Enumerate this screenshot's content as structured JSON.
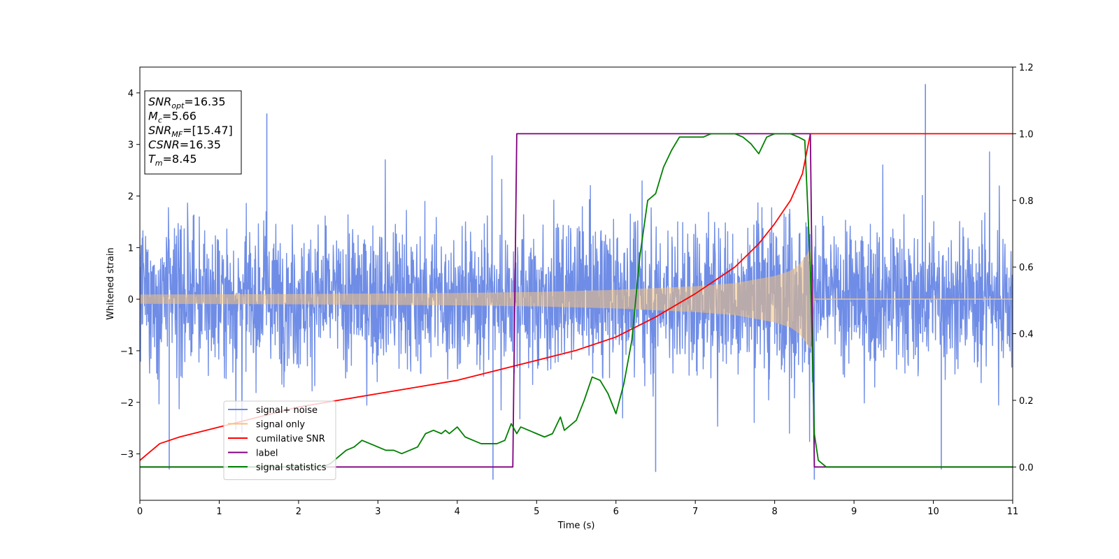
{
  "chart_data": {
    "type": "line",
    "xlabel": "Time (s)",
    "ylabel": "Whitened strain",
    "xlim": [
      0,
      11
    ],
    "ylim": [
      -3.9,
      4.5
    ],
    "y2lim": [
      -0.1,
      1.2
    ],
    "xticks": [
      "0",
      "1",
      "2",
      "3",
      "4",
      "5",
      "6",
      "7",
      "8",
      "9",
      "10",
      "11"
    ],
    "yticks": [
      "−3",
      "−2",
      "−1",
      "0",
      "1",
      "2",
      "3",
      "4"
    ],
    "y2ticks": [
      "0.0",
      "0.2",
      "0.4",
      "0.6",
      "0.8",
      "1.0",
      "1.2"
    ],
    "grid": false,
    "legend_position": "lower-left",
    "annotation": [
      {
        "id": "snr_opt",
        "sym": "SNR",
        "sub": "opt",
        "value": "=16.35"
      },
      {
        "id": "mc",
        "sym": "M",
        "sub": "c",
        "value": "=5.66"
      },
      {
        "id": "snr_mf",
        "sym": "SNR",
        "sub": "MF",
        "value": "=[15.47]"
      },
      {
        "id": "csnr",
        "sym": "CSNR",
        "sub": "",
        "value": "=16.35"
      },
      {
        "id": "tm",
        "sym": "T",
        "sub": "m",
        "value": "=8.45"
      }
    ],
    "merger_time": 8.45,
    "series": [
      {
        "name": "signal+ noise",
        "axis": "left",
        "color": "#6f8de6",
        "kind": "noise",
        "typical_range": [
          -1.6,
          1.9
        ],
        "extremes": [
          [
            1.6,
            3.6
          ],
          [
            9.9,
            4.17
          ],
          [
            4.45,
            -3.5
          ],
          [
            8.5,
            -3.5
          ],
          [
            6.5,
            -3.35
          ],
          [
            0.37,
            -3.3
          ],
          [
            10.1,
            -3.3
          ]
        ]
      },
      {
        "name": "signal only",
        "axis": "left",
        "color": "#f5c27a",
        "kind": "chirp",
        "envelope": [
          [
            0.0,
            0.09
          ],
          [
            2.0,
            0.1
          ],
          [
            4.0,
            0.12
          ],
          [
            5.0,
            0.14
          ],
          [
            6.0,
            0.18
          ],
          [
            7.0,
            0.25
          ],
          [
            7.5,
            0.31
          ],
          [
            8.0,
            0.45
          ],
          [
            8.2,
            0.55
          ],
          [
            8.3,
            0.66
          ],
          [
            8.4,
            0.85
          ],
          [
            8.45,
            1.0
          ],
          [
            8.5,
            0.0
          ],
          [
            11.0,
            0.0
          ]
        ]
      },
      {
        "name": "cumilative SNR",
        "axis": "right",
        "color": "#ff0000",
        "x": [
          0.0,
          0.25,
          0.5,
          1.0,
          1.5,
          2.0,
          2.5,
          3.0,
          3.5,
          4.0,
          4.5,
          5.0,
          5.5,
          6.0,
          6.5,
          7.0,
          7.5,
          7.8,
          8.0,
          8.2,
          8.35,
          8.45,
          11.0
        ],
        "values": [
          0.02,
          0.07,
          0.09,
          0.12,
          0.15,
          0.18,
          0.2,
          0.22,
          0.24,
          0.26,
          0.29,
          0.32,
          0.35,
          0.39,
          0.45,
          0.52,
          0.6,
          0.67,
          0.73,
          0.8,
          0.88,
          1.0,
          1.0
        ]
      },
      {
        "name": "label",
        "axis": "right",
        "color": "#800080",
        "x": [
          0.0,
          4.7,
          4.75,
          8.45,
          8.5,
          11.0
        ],
        "values": [
          0.0,
          0.0,
          1.0,
          1.0,
          0.0,
          0.0
        ]
      },
      {
        "name": "signal statistics",
        "axis": "right",
        "color": "#008000",
        "x": [
          0.0,
          2.3,
          2.4,
          2.5,
          2.6,
          2.7,
          2.8,
          2.9,
          3.0,
          3.1,
          3.2,
          3.3,
          3.4,
          3.5,
          3.6,
          3.7,
          3.8,
          3.85,
          3.9,
          4.0,
          4.1,
          4.2,
          4.3,
          4.4,
          4.5,
          4.6,
          4.68,
          4.75,
          4.8,
          4.9,
          5.0,
          5.1,
          5.2,
          5.3,
          5.35,
          5.4,
          5.5,
          5.6,
          5.7,
          5.8,
          5.9,
          6.0,
          6.1,
          6.2,
          6.3,
          6.4,
          6.5,
          6.6,
          6.7,
          6.8,
          6.9,
          7.0,
          7.1,
          7.2,
          7.3,
          7.4,
          7.5,
          7.6,
          7.7,
          7.8,
          7.9,
          8.0,
          8.1,
          8.2,
          8.3,
          8.38,
          8.45,
          8.5,
          8.55,
          8.6,
          8.65,
          11.0
        ],
        "values": [
          0.0,
          0.0,
          0.01,
          0.03,
          0.05,
          0.06,
          0.08,
          0.07,
          0.06,
          0.05,
          0.05,
          0.04,
          0.05,
          0.06,
          0.1,
          0.11,
          0.1,
          0.11,
          0.1,
          0.12,
          0.09,
          0.08,
          0.07,
          0.07,
          0.07,
          0.08,
          0.13,
          0.1,
          0.12,
          0.11,
          0.1,
          0.09,
          0.1,
          0.15,
          0.11,
          0.12,
          0.14,
          0.2,
          0.27,
          0.26,
          0.22,
          0.16,
          0.25,
          0.38,
          0.63,
          0.8,
          0.82,
          0.9,
          0.95,
          0.99,
          0.99,
          0.99,
          0.99,
          1.0,
          1.0,
          1.0,
          1.0,
          0.99,
          0.97,
          0.94,
          0.99,
          1.0,
          1.0,
          1.0,
          0.99,
          0.98,
          0.6,
          0.1,
          0.02,
          0.01,
          0.0,
          0.0
        ]
      }
    ]
  }
}
